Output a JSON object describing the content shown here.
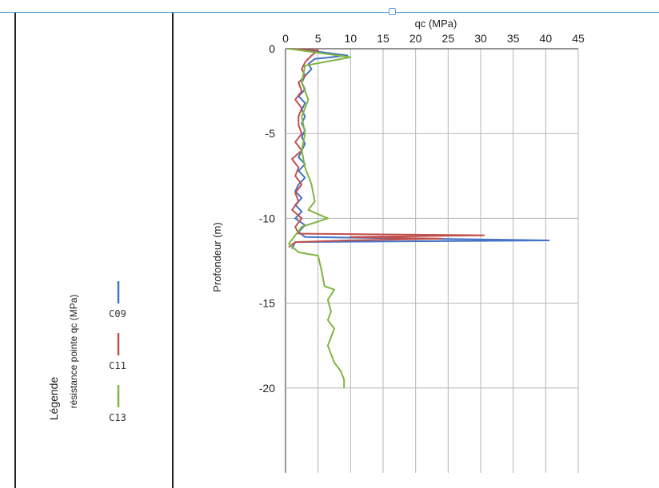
{
  "chart_data": {
    "type": "line",
    "title": "",
    "xlabel": "qc (MPa)",
    "ylabel": "Profondeur (m)",
    "xlim": [
      0,
      45
    ],
    "ylim": [
      -25,
      0
    ],
    "x_ticks": [
      "0",
      "5",
      "10",
      "15",
      "20",
      "25",
      "30",
      "35",
      "40",
      "45"
    ],
    "y_ticks": [
      "0",
      "-5",
      "-10",
      "-15",
      "-20"
    ],
    "grid": true,
    "legend_position": "left",
    "legend_title": "Légende",
    "legend_subtitle": "résistance pointe qc (MPa)",
    "series": [
      {
        "name": "C09",
        "color": "#4472c4",
        "points": [
          [
            1.0,
            0.0
          ],
          [
            5.5,
            -0.2
          ],
          [
            9.5,
            -0.4
          ],
          [
            4.5,
            -0.6
          ],
          [
            3.5,
            -0.9
          ],
          [
            4.0,
            -1.2
          ],
          [
            3.0,
            -1.6
          ],
          [
            2.5,
            -2.0
          ],
          [
            3.0,
            -2.4
          ],
          [
            2.0,
            -2.8
          ],
          [
            3.0,
            -3.2
          ],
          [
            2.5,
            -3.6
          ],
          [
            3.0,
            -4.0
          ],
          [
            2.5,
            -4.4
          ],
          [
            3.0,
            -4.8
          ],
          [
            2.5,
            -5.2
          ],
          [
            3.0,
            -5.6
          ],
          [
            2.5,
            -6.0
          ],
          [
            2.0,
            -6.4
          ],
          [
            3.0,
            -6.8
          ],
          [
            2.0,
            -7.2
          ],
          [
            3.0,
            -7.6
          ],
          [
            2.0,
            -8.0
          ],
          [
            1.5,
            -8.4
          ],
          [
            2.5,
            -8.8
          ],
          [
            1.5,
            -9.2
          ],
          [
            2.5,
            -9.6
          ],
          [
            1.5,
            -10.0
          ],
          [
            3.0,
            -10.4
          ],
          [
            2.0,
            -10.8
          ],
          [
            3.0,
            -11.1
          ],
          [
            40.5,
            -11.3
          ],
          [
            1.5,
            -11.4
          ],
          [
            1.0,
            -11.8
          ]
        ]
      },
      {
        "name": "C11",
        "color": "#c0504d",
        "points": [
          [
            0.5,
            0.0
          ],
          [
            5.0,
            -0.1
          ],
          [
            4.0,
            -0.4
          ],
          [
            3.0,
            -0.8
          ],
          [
            2.5,
            -1.2
          ],
          [
            3.0,
            -1.6
          ],
          [
            2.0,
            -2.0
          ],
          [
            2.5,
            -2.5
          ],
          [
            1.5,
            -3.0
          ],
          [
            2.5,
            -3.5
          ],
          [
            2.0,
            -4.0
          ],
          [
            2.0,
            -4.5
          ],
          [
            2.5,
            -5.0
          ],
          [
            1.5,
            -5.5
          ],
          [
            2.5,
            -6.0
          ],
          [
            1.0,
            -6.5
          ],
          [
            2.0,
            -7.0
          ],
          [
            1.5,
            -7.5
          ],
          [
            2.5,
            -8.0
          ],
          [
            1.5,
            -8.5
          ],
          [
            2.0,
            -9.0
          ],
          [
            1.0,
            -9.5
          ],
          [
            2.5,
            -10.0
          ],
          [
            1.5,
            -10.5
          ],
          [
            2.0,
            -10.9
          ],
          [
            30.5,
            -11.0
          ],
          [
            10.0,
            -11.1
          ],
          [
            24.0,
            -11.2
          ],
          [
            9.5,
            -11.3
          ],
          [
            1.5,
            -11.4
          ],
          [
            0.5,
            -11.7
          ]
        ]
      },
      {
        "name": "C13",
        "color": "#7fb53f",
        "points": [
          [
            0.5,
            0.0
          ],
          [
            10.0,
            -0.5
          ],
          [
            3.0,
            -1.0
          ],
          [
            2.5,
            -2.0
          ],
          [
            3.5,
            -3.0
          ],
          [
            2.5,
            -4.0
          ],
          [
            3.0,
            -5.0
          ],
          [
            2.5,
            -6.0
          ],
          [
            3.0,
            -7.0
          ],
          [
            4.0,
            -8.0
          ],
          [
            4.5,
            -9.0
          ],
          [
            3.5,
            -9.5
          ],
          [
            6.5,
            -10.0
          ],
          [
            2.5,
            -10.5
          ],
          [
            1.5,
            -11.0
          ],
          [
            0.5,
            -11.5
          ],
          [
            2.0,
            -12.0
          ],
          [
            5.0,
            -12.2
          ],
          [
            5.5,
            -13.0
          ],
          [
            6.0,
            -14.0
          ],
          [
            7.5,
            -14.2
          ],
          [
            6.5,
            -14.8
          ],
          [
            7.0,
            -15.5
          ],
          [
            6.5,
            -16.0
          ],
          [
            7.5,
            -16.5
          ],
          [
            7.0,
            -17.0
          ],
          [
            6.5,
            -17.5
          ],
          [
            7.0,
            -18.0
          ],
          [
            7.5,
            -18.5
          ],
          [
            8.5,
            -19.0
          ],
          [
            9.0,
            -19.5
          ],
          [
            9.0,
            -20.0
          ]
        ]
      }
    ]
  }
}
